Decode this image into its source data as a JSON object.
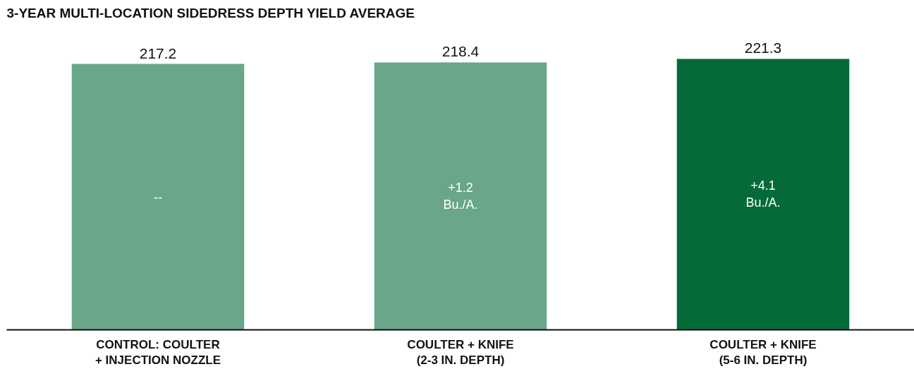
{
  "chart_data": {
    "type": "bar",
    "title": "3-YEAR MULTI-LOCATION SIDEDRESS DEPTH YIELD AVERAGE",
    "categories": [
      "CONTROL: COULTER\n+ INJECTION NOZZLE",
      "COULTER + KNIFE\n(2-3 IN. DEPTH)",
      "COULTER + KNIFE\n(5-6 IN. DEPTH)"
    ],
    "values": [
      217.2,
      218.4,
      221.3
    ],
    "colors": [
      "#69a68a",
      "#69a68a",
      "#046b38"
    ],
    "data_labels": true,
    "tick_labels": "x",
    "annotations": [
      "--",
      "+1.2\nBu./A.",
      "+4.1\nBu./A."
    ]
  }
}
